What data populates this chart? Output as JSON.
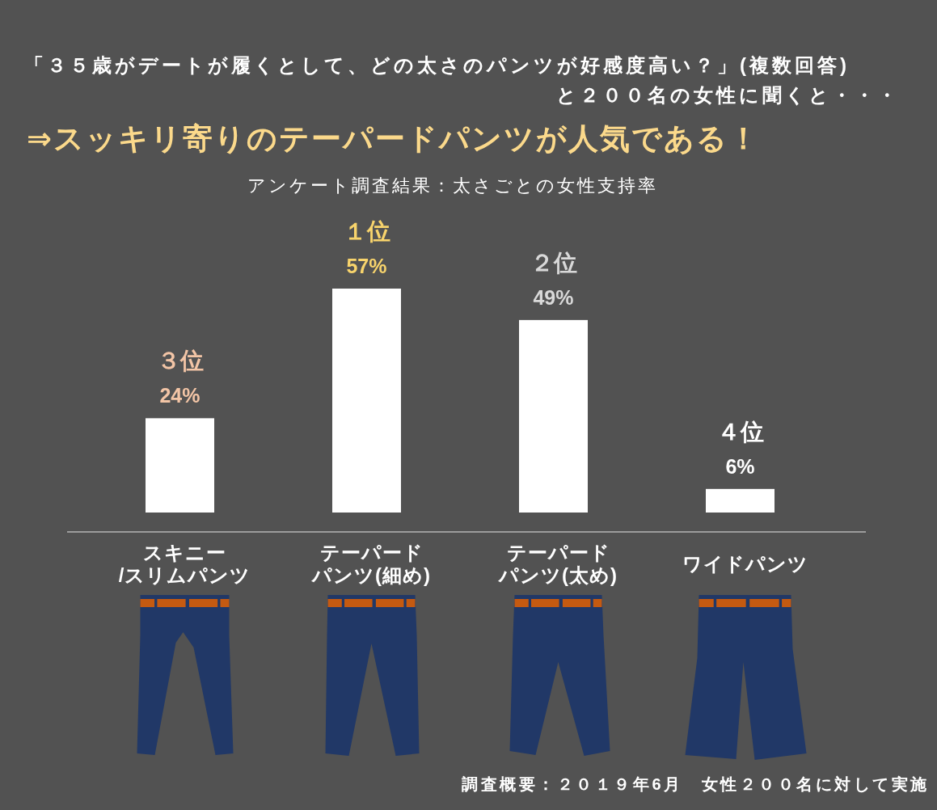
{
  "chart_data": {
    "type": "bar",
    "title": "「３５歳がデートが履くとして、どの太さのパンツが好感度高い？」(複数回答)\nと２００名の女性に聞くと・・・",
    "subtitle": "⇒スッキリ寄りのテーパードパンツが人気である！",
    "categories": [
      "スキニー/スリムパンツ",
      "テーパードパンツ(細め)",
      "テーパードパンツ(太め)",
      "ワイドパンツ"
    ],
    "values": [
      24,
      57,
      49,
      6
    ],
    "color": "#ffffff",
    "value_labels": [
      "24%",
      "57%",
      "49%",
      "6%"
    ],
    "annotations": [
      "アンケート調査結果：太さごとの女性支持率",
      {
        "text": "３位",
        "x": "スキニー/スリムパンツ",
        "y": 24
      },
      {
        "text": "１位",
        "x": "テーパードパンツ(細め)",
        "y": 57
      },
      {
        "text": "２位",
        "x": "テーパードパンツ(太め)",
        "y": 49
      },
      {
        "text": "４位",
        "x": "ワイドパンツ",
        "y": 6
      },
      "調査概要：２０１９年6月　女性２００名に対して実施"
    ]
  }
}
